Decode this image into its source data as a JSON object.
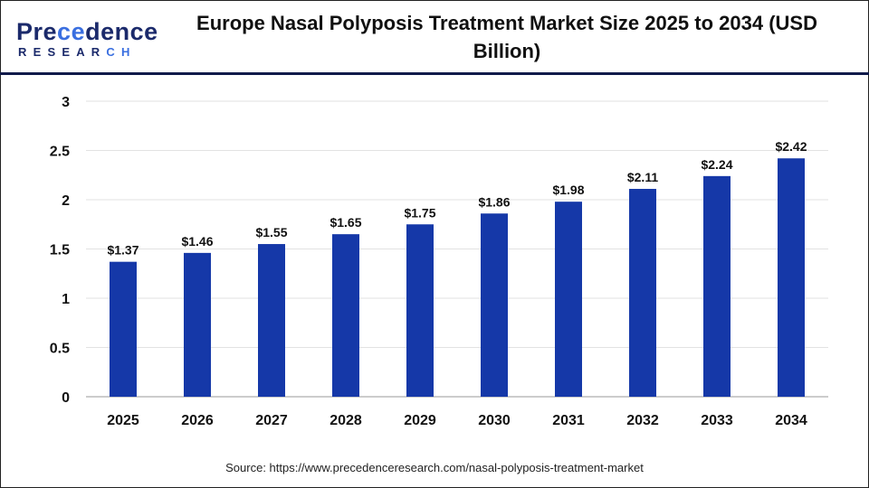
{
  "logo": {
    "line1": "Precedence",
    "line2": "RESEARCH"
  },
  "chart_data": {
    "type": "bar",
    "title": "Europe Nasal Polyposis Treatment Market Size 2025 to 2034 (USD Billion)",
    "categories": [
      "2025",
      "2026",
      "2027",
      "2028",
      "2029",
      "2030",
      "2031",
      "2032",
      "2033",
      "2034"
    ],
    "values": [
      1.37,
      1.46,
      1.55,
      1.65,
      1.75,
      1.86,
      1.98,
      2.11,
      2.24,
      2.42
    ],
    "data_labels": [
      "$1.37",
      "$1.46",
      "$1.55",
      "$1.65",
      "$1.75",
      "$1.86",
      "$1.98",
      "$2.11",
      "$2.24",
      "$2.42"
    ],
    "xlabel": "",
    "ylabel": "",
    "ylim": [
      0,
      3
    ],
    "yticks": [
      "0",
      "0.5",
      "1",
      "1.5",
      "2",
      "2.5",
      "3"
    ],
    "grid": true,
    "bar_color": "#1538a8"
  },
  "source": "Source: https://www.precedenceresearch.com/nasal-polyposis-treatment-market"
}
